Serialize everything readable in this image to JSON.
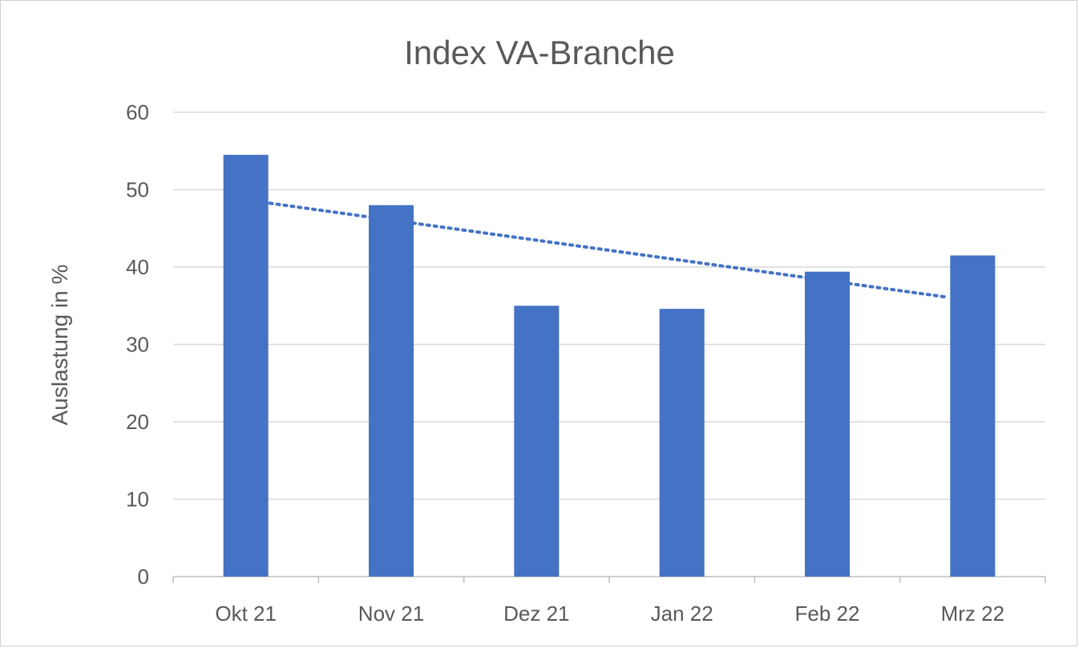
{
  "chart_data": {
    "type": "bar",
    "title": "Index VA-Branche",
    "xlabel": "",
    "ylabel": "Auslastung in %",
    "categories": [
      "Okt 21",
      "Nov 21",
      "Dez 21",
      "Jan 22",
      "Feb 22",
      "Mrz 22"
    ],
    "series": [
      {
        "values": [
          54.5,
          48.0,
          35.0,
          34.6,
          39.4,
          41.5
        ]
      }
    ],
    "trendline": {
      "style": "dotted",
      "type": "linear"
    },
    "ylim": [
      0,
      60
    ],
    "yticks": [
      "0",
      "10",
      "20",
      "30",
      "40",
      "50",
      "60"
    ],
    "grid": true,
    "legend": "none",
    "colors": {
      "bar": "#4472C4",
      "trend": "#4472C4",
      "grid": "#D9D9D9",
      "text": "#595959"
    }
  }
}
